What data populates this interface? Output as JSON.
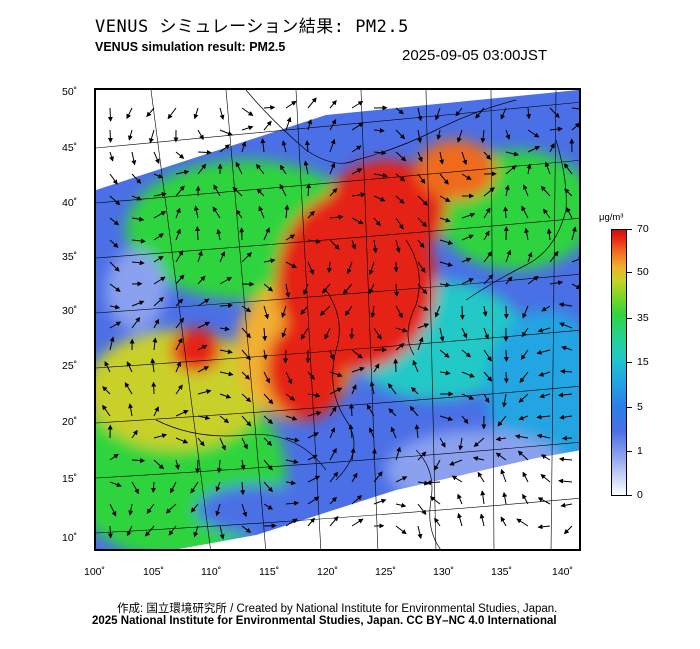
{
  "header": {
    "title_jp": "VENUS シミュレーション結果: PM2.5",
    "title_en": "VENUS simulation result: PM2.5",
    "timestamp": "2025-09-05 03:00JST"
  },
  "map": {
    "lat_labels": [
      "50˚",
      "45˚",
      "40˚",
      "35˚",
      "30˚",
      "25˚",
      "20˚",
      "15˚",
      "10˚"
    ],
    "lon_labels": [
      "100˚",
      "105˚",
      "110˚",
      "115˚",
      "120˚",
      "125˚",
      "130˚",
      "135˚",
      "140˚"
    ],
    "field": "PM2.5 concentration with wind vectors"
  },
  "colorbar": {
    "unit": "μg/m³",
    "ticks": [
      "70",
      "50",
      "35",
      "15",
      "5",
      "1",
      "0"
    ],
    "colors": {
      "low": "#ffffff",
      "blue": "#4b6fe6",
      "cyan": "#22c9c6",
      "green": "#2fd43d",
      "yellow": "#c9d02a",
      "orange": "#f06a1f",
      "red": "#e52414"
    }
  },
  "footer": {
    "credit": "作成: 国立環境研究所 / Created by National Institute for Environmental Studies, Japan.",
    "copyright": "2025 National Institute for Environmental Studies, Japan. CC BY–NC 4.0 International"
  }
}
